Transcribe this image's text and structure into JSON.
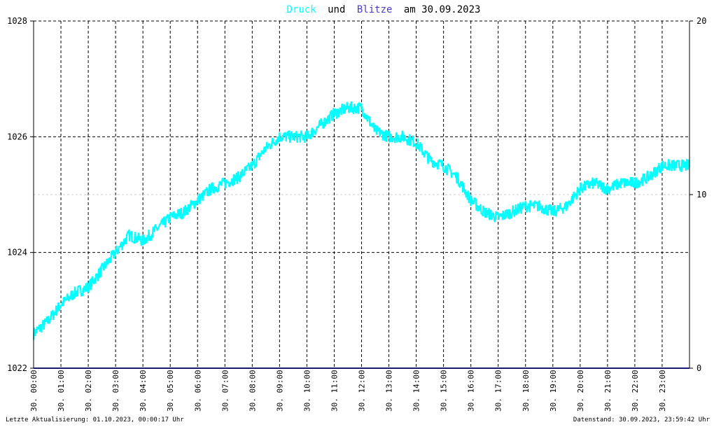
{
  "chart_data": {
    "type": "line",
    "title": {
      "part1": "Druck",
      "part2": "und",
      "part3": "Blitze",
      "part4": "am 30.09.2023"
    },
    "x_tick_labels": [
      "30. 00:00",
      "30. 01:00",
      "30. 02:00",
      "30. 03:00",
      "30. 04:00",
      "30. 05:00",
      "30. 06:00",
      "30. 07:00",
      "30. 08:00",
      "30. 09:00",
      "30. 10:00",
      "30. 11:00",
      "30. 12:00",
      "30. 13:00",
      "30. 14:00",
      "30. 15:00",
      "30. 16:00",
      "30. 17:00",
      "30. 18:00",
      "30. 19:00",
      "30. 20:00",
      "30. 21:00",
      "30. 22:00",
      "30. 23:00"
    ],
    "x_range_hours": [
      0,
      24
    ],
    "y_left": {
      "range": [
        1022,
        1028
      ],
      "ticks": [
        "1022",
        "1024",
        "1026",
        "1028"
      ]
    },
    "y_right": {
      "range": [
        0,
        20
      ],
      "ticks": [
        "0",
        "10",
        "20"
      ]
    },
    "grid": true,
    "colors": {
      "druck": "#00ffff",
      "blitze": "#191970",
      "grid": "#000000",
      "mid_grid": "#cccccc"
    },
    "series": [
      {
        "name": "Druck",
        "axis": "left",
        "x_hours": [
          0,
          0.5,
          1,
          1.5,
          2,
          2.5,
          3,
          3.5,
          4,
          4.5,
          5,
          5.5,
          6,
          6.5,
          7,
          7.5,
          8,
          8.5,
          9,
          9.5,
          10,
          10.5,
          11,
          11.5,
          12,
          12.5,
          13,
          13.5,
          14,
          14.5,
          15,
          15.5,
          16,
          16.5,
          17,
          17.5,
          18,
          18.5,
          19,
          19.5,
          20,
          20.5,
          21,
          21.5,
          22,
          22.5,
          23,
          23.5,
          24
        ],
        "values": [
          1022.6,
          1022.8,
          1023.1,
          1023.3,
          1023.4,
          1023.7,
          1024.0,
          1024.3,
          1024.2,
          1024.4,
          1024.6,
          1024.7,
          1024.9,
          1025.1,
          1025.2,
          1025.3,
          1025.5,
          1025.8,
          1026.0,
          1026.0,
          1026.0,
          1026.2,
          1026.4,
          1026.5,
          1026.5,
          1026.1,
          1026.0,
          1026.0,
          1025.9,
          1025.6,
          1025.5,
          1025.3,
          1024.9,
          1024.7,
          1024.6,
          1024.7,
          1024.8,
          1024.8,
          1024.7,
          1024.8,
          1025.1,
          1025.2,
          1025.1,
          1025.2,
          1025.2,
          1025.3,
          1025.5,
          1025.5,
          1025.5
        ]
      },
      {
        "name": "Blitze",
        "axis": "right",
        "x_hours": [
          0,
          24
        ],
        "values": [
          0,
          0
        ]
      }
    ],
    "footer_left": "Letzte Aktualisierung: 01.10.2023, 00:00:17 Uhr",
    "footer_right": "Datenstand: 30.09.2023, 23:59:42 Uhr"
  }
}
